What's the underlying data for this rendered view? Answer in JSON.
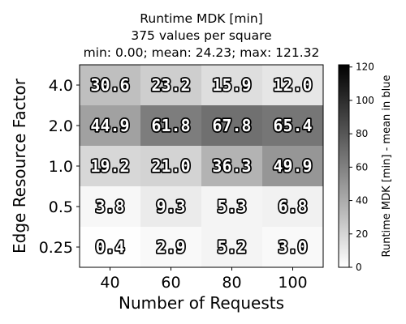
{
  "chart_data": {
    "type": "heatmap",
    "title": "Runtime MDK [min]",
    "subtitle_line1": "375 values per square",
    "subtitle_line2": "min: 0.00; mean: 24.23; max: 121.32",
    "xlabel": "Number of Requests",
    "ylabel": "Edge Resource Factor",
    "x_categories": [
      "40",
      "60",
      "80",
      "100"
    ],
    "y_categories": [
      "4.0",
      "2.0",
      "1.0",
      "0.5",
      "0.25"
    ],
    "values": [
      [
        30.6,
        23.2,
        15.9,
        12.0
      ],
      [
        44.9,
        61.8,
        67.8,
        65.4
      ],
      [
        19.2,
        21.0,
        36.3,
        49.9
      ],
      [
        3.8,
        9.3,
        5.3,
        6.8
      ],
      [
        0.4,
        2.9,
        5.2,
        3.0
      ]
    ],
    "cell_labels": [
      [
        "30.6",
        "23.2",
        "15.9",
        "12.0"
      ],
      [
        "44.9",
        "61.8",
        "67.8",
        "65.4"
      ],
      [
        "19.2",
        "21.0",
        "36.3",
        "49.9"
      ],
      [
        "3.8",
        "9.3",
        "5.3",
        "6.8"
      ],
      [
        "0.4",
        "2.9",
        "5.2",
        "3.0"
      ]
    ],
    "colorbar": {
      "label": "Runtime MDK [min] - mean in blue",
      "range": [
        0,
        121.32
      ],
      "ticks": [
        0,
        20,
        40,
        60,
        80,
        100,
        120
      ],
      "colormap": "Greys",
      "color_low": "#ffffff",
      "color_high": "#000000"
    }
  }
}
